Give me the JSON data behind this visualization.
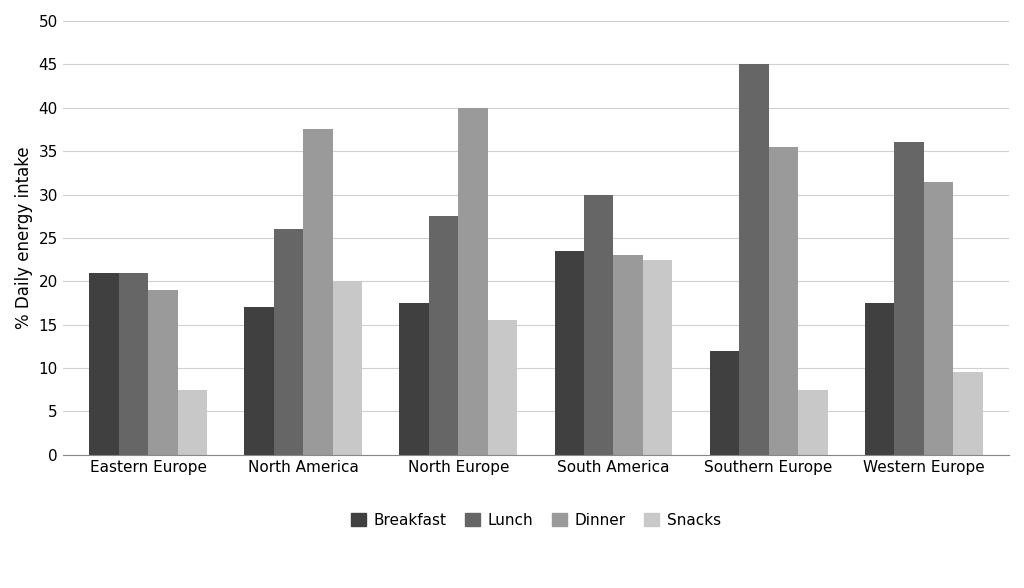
{
  "categories": [
    "Eastern Europe",
    "North America",
    "North Europe",
    "South America",
    "Southern Europe",
    "Western Europe"
  ],
  "series": {
    "Breakfast": [
      21,
      17,
      17.5,
      23.5,
      12,
      17.5
    ],
    "Lunch": [
      21,
      26,
      27.5,
      30,
      45,
      36
    ],
    "Dinner": [
      19,
      37.5,
      40,
      23,
      35.5,
      31.5
    ],
    "Snacks": [
      7.5,
      20,
      15.5,
      22.5,
      7.5,
      9.5
    ]
  },
  "colors": {
    "Breakfast": "#404040",
    "Lunch": "#666666",
    "Dinner": "#9a9a9a",
    "Snacks": "#c8c8c8"
  },
  "ylabel": "% Daily energy intake",
  "ylim": [
    0,
    50
  ],
  "yticks": [
    0,
    5,
    10,
    15,
    20,
    25,
    30,
    35,
    40,
    45,
    50
  ],
  "legend_order": [
    "Breakfast",
    "Lunch",
    "Dinner",
    "Snacks"
  ],
  "bar_width": 0.19,
  "background_color": "#ffffff",
  "grid_color": "#d0d0d0",
  "tick_fontsize": 11,
  "ylabel_fontsize": 12,
  "legend_fontsize": 11
}
